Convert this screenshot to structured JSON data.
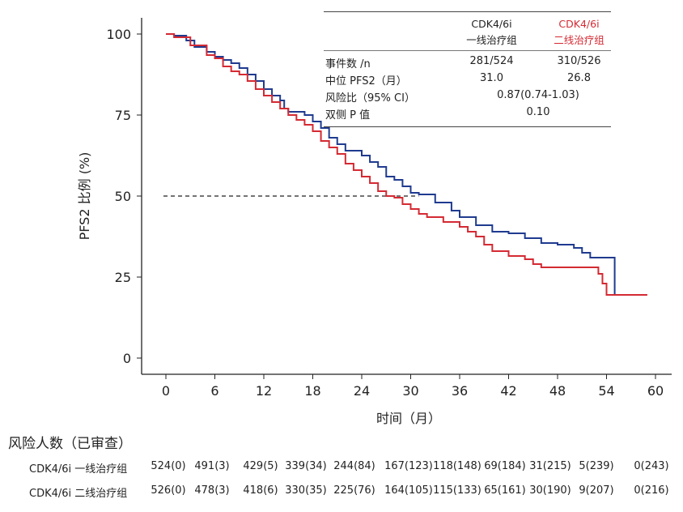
{
  "chart_data": {
    "type": "line",
    "subtype": "kaplan-meier",
    "xlabel": "时间（月）",
    "ylabel": "PFS2 比例 (%)",
    "xlim": [
      0,
      60
    ],
    "ylim": [
      0,
      100
    ],
    "xticks": [
      0,
      6,
      12,
      18,
      24,
      30,
      36,
      42,
      48,
      54,
      60
    ],
    "yticks": [
      0,
      25,
      50,
      75,
      100
    ],
    "reference_line": {
      "y": 50,
      "style": "dashed",
      "x_end": 31.0
    },
    "series": [
      {
        "name": "CDK4/6i 一线治疗组",
        "color": "#1f3b8f",
        "points": [
          [
            0,
            100
          ],
          [
            1,
            99.5
          ],
          [
            2.5,
            98
          ],
          [
            3.5,
            96
          ],
          [
            5,
            94.5
          ],
          [
            6,
            93
          ],
          [
            7,
            92
          ],
          [
            8,
            91
          ],
          [
            9,
            89.5
          ],
          [
            10,
            87.5
          ],
          [
            11,
            85.5
          ],
          [
            12,
            83
          ],
          [
            13,
            81
          ],
          [
            14,
            79.5
          ],
          [
            14.5,
            77
          ],
          [
            15,
            76
          ],
          [
            17,
            75
          ],
          [
            18,
            73
          ],
          [
            19,
            71
          ],
          [
            20,
            68
          ],
          [
            21,
            66
          ],
          [
            22,
            64
          ],
          [
            24,
            62.5
          ],
          [
            25,
            60.5
          ],
          [
            26,
            59
          ],
          [
            27,
            56
          ],
          [
            28,
            55
          ],
          [
            29,
            53
          ],
          [
            30,
            51
          ],
          [
            31,
            50.5
          ],
          [
            32.5,
            50.5
          ],
          [
            33,
            48
          ],
          [
            35,
            45.5
          ],
          [
            36,
            43.5
          ],
          [
            38,
            41
          ],
          [
            40,
            39
          ],
          [
            42,
            38.5
          ],
          [
            44,
            37
          ],
          [
            46,
            35.5
          ],
          [
            48,
            35
          ],
          [
            50,
            34
          ],
          [
            51,
            32.5
          ],
          [
            52,
            31
          ],
          [
            55,
            31
          ],
          [
            55,
            19.5
          ]
        ]
      },
      {
        "name": "CDK4/6i 二线治疗组",
        "color": "#d42a33",
        "points": [
          [
            0,
            100
          ],
          [
            1,
            99
          ],
          [
            3,
            96.5
          ],
          [
            5,
            93.5
          ],
          [
            6,
            92.5
          ],
          [
            7,
            90
          ],
          [
            8,
            88.5
          ],
          [
            9,
            87.5
          ],
          [
            10,
            85.5
          ],
          [
            11,
            83
          ],
          [
            12,
            81
          ],
          [
            13,
            79
          ],
          [
            14,
            77
          ],
          [
            15,
            75
          ],
          [
            16,
            73.5
          ],
          [
            17,
            72
          ],
          [
            18,
            70
          ],
          [
            19,
            67
          ],
          [
            20,
            65
          ],
          [
            21,
            63
          ],
          [
            22,
            60
          ],
          [
            23,
            58
          ],
          [
            24,
            56
          ],
          [
            25,
            54
          ],
          [
            26,
            51.5
          ],
          [
            27,
            50
          ],
          [
            28,
            49.5
          ],
          [
            29,
            47.5
          ],
          [
            30,
            46
          ],
          [
            31,
            44.5
          ],
          [
            32,
            43.5
          ],
          [
            34,
            42
          ],
          [
            36,
            40.5
          ],
          [
            37,
            39
          ],
          [
            38,
            37.5
          ],
          [
            39,
            35
          ],
          [
            40,
            33
          ],
          [
            42,
            31.5
          ],
          [
            44,
            30.5
          ],
          [
            45,
            29
          ],
          [
            46,
            28
          ],
          [
            52,
            28
          ],
          [
            53,
            26
          ],
          [
            53.5,
            23
          ],
          [
            54,
            19.5
          ],
          [
            59,
            19.5
          ]
        ]
      }
    ]
  },
  "table": {
    "headers": [
      {
        "line1": "CDK4/6i",
        "line2": "一线治疗组",
        "color": "#222222"
      },
      {
        "line1": "CDK4/6i",
        "line2": "二线治疗组",
        "color": "#d42a33"
      }
    ],
    "rows": [
      {
        "label": "事件数 /n",
        "a": "281/524",
        "b": "310/526"
      },
      {
        "label": "中位 PFS2（月）",
        "a": "31.0",
        "b": "26.8"
      },
      {
        "label": "风险比（95% CI）",
        "combined": "0.87(0.74-1.03)"
      },
      {
        "label": "双侧 P 值",
        "combined": "0.10"
      }
    ]
  },
  "risk": {
    "title": "风险人数（已审查）",
    "rows": [
      {
        "label": "CDK4/6i 一线治疗组",
        "values": [
          "524(0)",
          "491(3)",
          "429(5)",
          "339(34)",
          "244(84)",
          "167(123)",
          "118(148)",
          "69(184)",
          "31(215)",
          "5(239)",
          "0(243)"
        ]
      },
      {
        "label": "CDK4/6i 二线治疗组",
        "values": [
          "526(0)",
          "478(3)",
          "418(6)",
          "330(35)",
          "225(76)",
          "164(105)",
          "115(133)",
          "65(161)",
          "30(190)",
          "9(207)",
          "0(216)"
        ]
      }
    ]
  }
}
